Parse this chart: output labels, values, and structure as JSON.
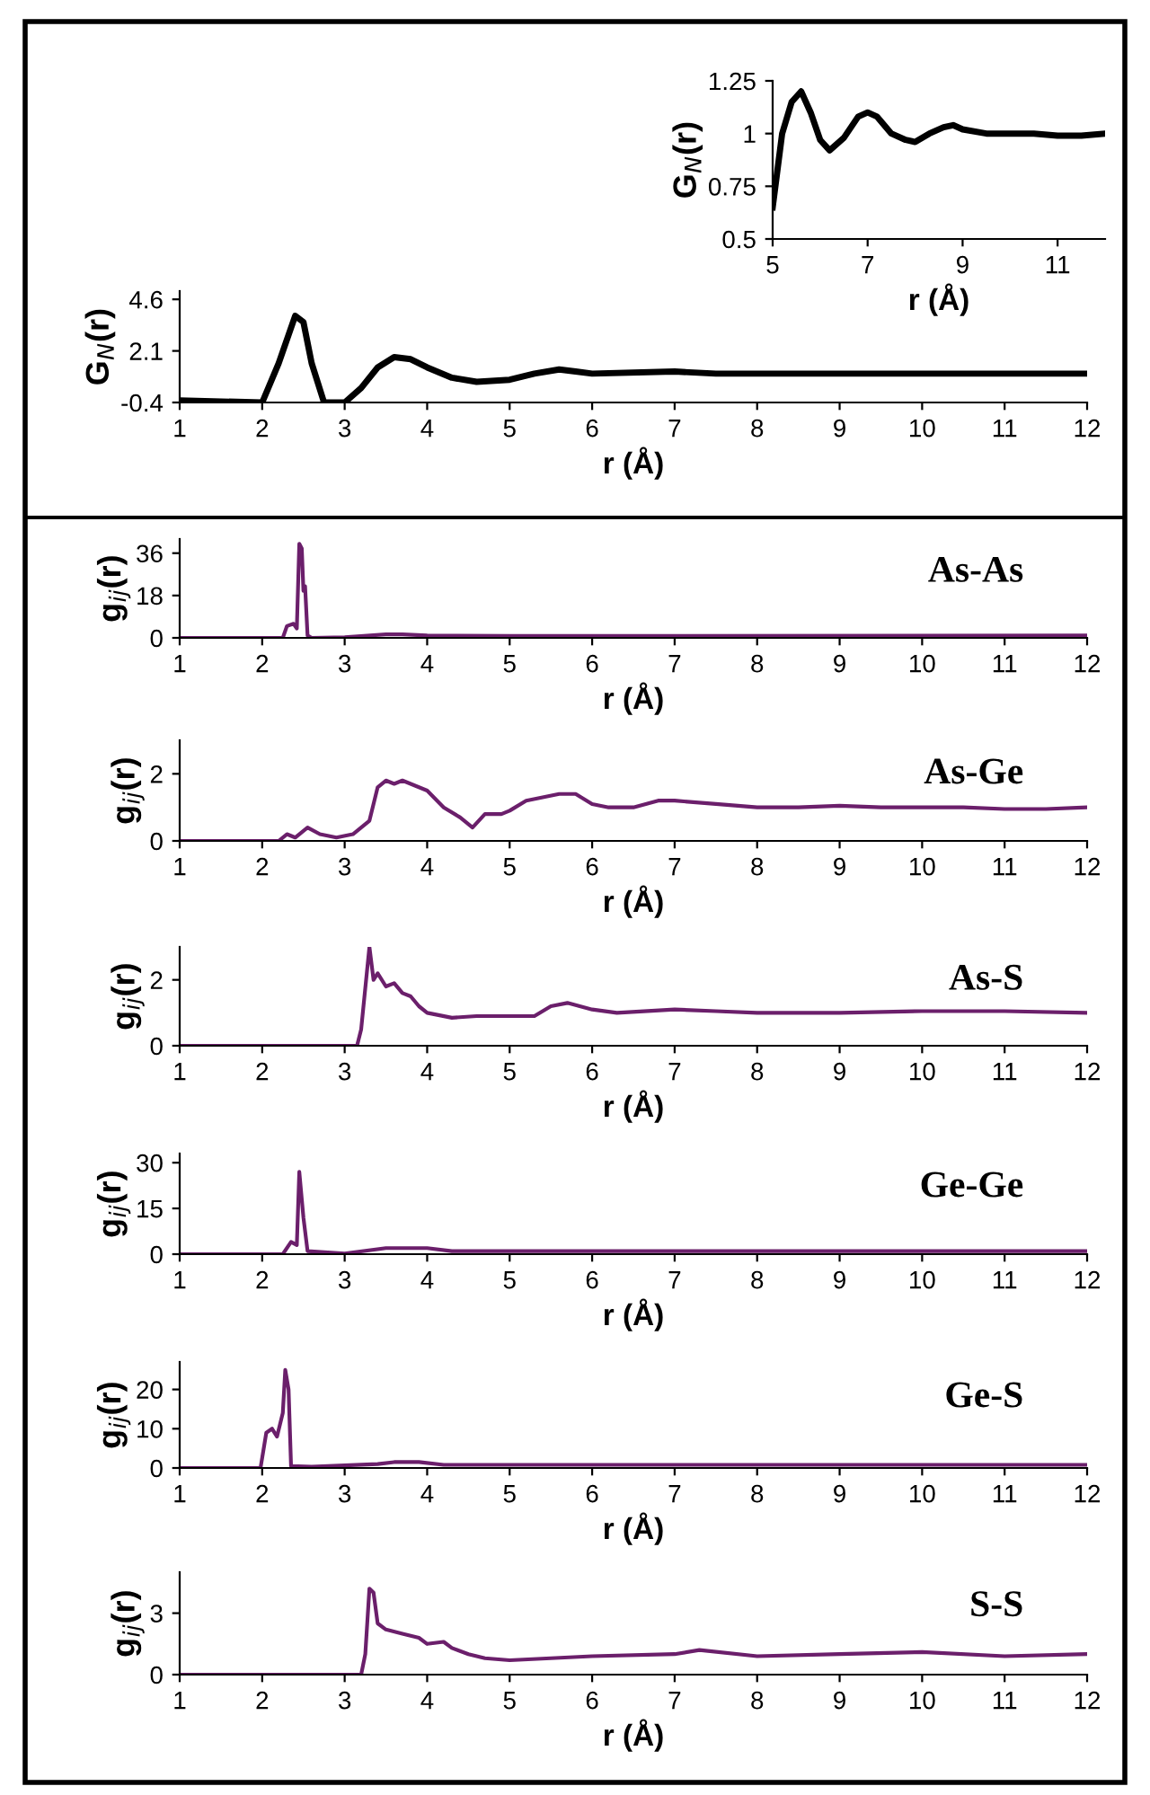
{
  "chart_data": [
    {
      "type": "line",
      "x": [
        5,
        5.2,
        5.4,
        5.6,
        5.8,
        6.0,
        6.2,
        6.5,
        6.8,
        7.0,
        7.2,
        7.5,
        7.8,
        8.0,
        8.3,
        8.6,
        8.8,
        9.0,
        9.5,
        10,
        10.5,
        11,
        11.5,
        12
      ],
      "values": [
        0.65,
        1.0,
        1.15,
        1.2,
        1.1,
        0.97,
        0.92,
        0.98,
        1.08,
        1.1,
        1.08,
        1.0,
        0.97,
        0.96,
        1.0,
        1.03,
        1.04,
        1.02,
        1.0,
        1.0,
        1.0,
        0.99,
        0.99,
        1.0
      ],
      "color": "#000000",
      "xlim": [
        5,
        12
      ],
      "ylim": [
        0.5,
        1.25
      ],
      "xticks": [
        5,
        7,
        9,
        11
      ],
      "yticks": [
        0.5,
        0.75,
        1,
        1.25
      ],
      "xlabel": "r (Å)",
      "ylabel": "G$_{N}$(r)"
    },
    {
      "type": "line",
      "x": [
        1,
        2.0,
        2.2,
        2.4,
        2.5,
        2.6,
        2.75,
        3.0,
        3.2,
        3.4,
        3.6,
        3.8,
        4.0,
        4.3,
        4.6,
        5.0,
        5.3,
        5.6,
        5.8,
        6.0,
        7.0,
        7.5,
        12
      ],
      "values": [
        -0.3,
        -0.4,
        1.5,
        3.8,
        3.5,
        1.5,
        -0.4,
        -0.4,
        0.3,
        1.3,
        1.8,
        1.7,
        1.3,
        0.8,
        0.6,
        0.7,
        1.0,
        1.2,
        1.1,
        1.0,
        1.1,
        1.0,
        1.0
      ],
      "color": "#000000",
      "xlim": [
        1,
        12
      ],
      "ylim": [
        -0.4,
        5.0
      ],
      "xticks": [
        1,
        2,
        3,
        4,
        5,
        6,
        7,
        8,
        9,
        10,
        11,
        12
      ],
      "yticks": [
        -0.4,
        2.1,
        4.6
      ],
      "xlabel": "r (Å)",
      "ylabel": "G$_{N}$(r)"
    },
    {
      "type": "line",
      "x": [
        1,
        2.25,
        2.3,
        2.38,
        2.42,
        2.45,
        2.48,
        2.5,
        2.52,
        2.55,
        2.6,
        3.0,
        3.5,
        3.7,
        4.0,
        5.0,
        12
      ],
      "values": [
        0,
        0,
        5,
        6,
        4,
        40,
        38,
        20,
        22,
        1,
        0,
        0.3,
        1.5,
        1.5,
        1,
        0.8,
        1
      ],
      "color": "#6b1f6b",
      "xlim": [
        1,
        12
      ],
      "ylim": [
        0,
        42
      ],
      "xticks": [
        1,
        2,
        3,
        4,
        5,
        6,
        7,
        8,
        9,
        10,
        11,
        12
      ],
      "yticks": [
        0,
        18,
        36
      ],
      "xlabel": "r (Å)",
      "ylabel": "g$_{ij}$(r)",
      "annotations": [
        "As-As"
      ]
    },
    {
      "type": "line",
      "x": [
        1,
        2.2,
        2.3,
        2.4,
        2.55,
        2.7,
        2.9,
        3.1,
        3.3,
        3.4,
        3.5,
        3.6,
        3.7,
        3.9,
        4.0,
        4.2,
        4.4,
        4.55,
        4.7,
        4.9,
        5.0,
        5.2,
        5.4,
        5.6,
        5.8,
        6.0,
        6.2,
        6.5,
        6.8,
        7.0,
        7.5,
        8,
        8.5,
        9,
        9.5,
        10,
        10.5,
        11,
        11.5,
        12
      ],
      "values": [
        0,
        0,
        0.2,
        0.1,
        0.4,
        0.2,
        0.1,
        0.2,
        0.6,
        1.6,
        1.8,
        1.7,
        1.8,
        1.6,
        1.5,
        1.0,
        0.7,
        0.4,
        0.8,
        0.8,
        0.9,
        1.2,
        1.3,
        1.4,
        1.4,
        1.1,
        1.0,
        1.0,
        1.2,
        1.2,
        1.1,
        1.0,
        1.0,
        1.05,
        1.0,
        1.0,
        1.0,
        0.95,
        0.95,
        1.0
      ],
      "color": "#6b1f6b",
      "xlim": [
        1,
        12
      ],
      "ylim": [
        0,
        3
      ],
      "xticks": [
        1,
        2,
        3,
        4,
        5,
        6,
        7,
        8,
        9,
        10,
        11,
        12
      ],
      "yticks": [
        0,
        2
      ],
      "xlabel": "r (Å)",
      "ylabel": "g$_{ij}$(r)",
      "annotations": [
        "As-Ge"
      ]
    },
    {
      "type": "line",
      "x": [
        1,
        3.15,
        3.2,
        3.3,
        3.35,
        3.4,
        3.5,
        3.6,
        3.7,
        3.8,
        3.9,
        4.0,
        4.3,
        4.6,
        5.0,
        5.3,
        5.5,
        5.7,
        6.0,
        6.3,
        7,
        7.5,
        8,
        9,
        10,
        11,
        12
      ],
      "values": [
        0,
        0,
        0.5,
        3.0,
        2.0,
        2.2,
        1.8,
        1.9,
        1.6,
        1.5,
        1.2,
        1.0,
        0.85,
        0.9,
        0.9,
        0.9,
        1.2,
        1.3,
        1.1,
        1.0,
        1.1,
        1.05,
        1.0,
        1.0,
        1.05,
        1.05,
        1.0
      ],
      "color": "#6b1f6b",
      "xlim": [
        1,
        12
      ],
      "ylim": [
        0,
        3
      ],
      "xticks": [
        1,
        2,
        3,
        4,
        5,
        6,
        7,
        8,
        9,
        10,
        11,
        12
      ],
      "yticks": [
        0,
        2
      ],
      "xlabel": "r (Å)",
      "ylabel": "g$_{ij}$(r)",
      "annotations": [
        "As-S"
      ]
    },
    {
      "type": "line",
      "x": [
        1,
        2.25,
        2.35,
        2.42,
        2.45,
        2.5,
        2.55,
        3.0,
        3.5,
        4.0,
        4.3,
        12
      ],
      "values": [
        0,
        0,
        4,
        3,
        27,
        12,
        1,
        0.2,
        2,
        2,
        1,
        1
      ],
      "color": "#6b1f6b",
      "xlim": [
        1,
        12
      ],
      "ylim": [
        0,
        33
      ],
      "xticks": [
        1,
        2,
        3,
        4,
        5,
        6,
        7,
        8,
        9,
        10,
        11,
        12
      ],
      "yticks": [
        0,
        15,
        30
      ],
      "xlabel": "r (Å)",
      "ylabel": "g$_{ij}$(r)",
      "annotations": [
        "Ge-Ge"
      ]
    },
    {
      "type": "line",
      "x": [
        1,
        1.98,
        2.05,
        2.12,
        2.18,
        2.25,
        2.28,
        2.32,
        2.35,
        2.6,
        3.4,
        3.6,
        3.9,
        4.2,
        12
      ],
      "values": [
        0,
        0,
        9,
        10,
        8,
        14,
        25,
        20,
        0.5,
        0.3,
        1,
        1.5,
        1.5,
        0.8,
        0.8
      ],
      "color": "#6b1f6b",
      "xlim": [
        1,
        12
      ],
      "ylim": [
        0,
        27
      ],
      "xticks": [
        1,
        2,
        3,
        4,
        5,
        6,
        7,
        8,
        9,
        10,
        11,
        12
      ],
      "yticks": [
        0,
        10,
        20
      ],
      "xlabel": "r (Å)",
      "ylabel": "g$_{ij}$(r)",
      "annotations": [
        "Ge-S"
      ]
    },
    {
      "type": "line",
      "x": [
        1,
        3.2,
        3.25,
        3.3,
        3.35,
        3.4,
        3.5,
        3.7,
        3.9,
        4.0,
        4.2,
        4.3,
        4.5,
        4.7,
        5,
        5.5,
        6,
        7,
        7.3,
        8,
        9,
        10,
        11,
        12
      ],
      "values": [
        0,
        0,
        1,
        4.2,
        4.0,
        2.5,
        2.2,
        2.0,
        1.8,
        1.5,
        1.6,
        1.3,
        1.0,
        0.8,
        0.7,
        0.8,
        0.9,
        1.0,
        1.2,
        0.9,
        1.0,
        1.1,
        0.9,
        1.0
      ],
      "color": "#6b1f6b",
      "xlim": [
        1,
        12
      ],
      "ylim": [
        0,
        5
      ],
      "xticks": [
        1,
        2,
        3,
        4,
        5,
        6,
        7,
        8,
        9,
        10,
        11,
        12
      ],
      "yticks": [
        0,
        3
      ],
      "xlabel": "r (Å)",
      "ylabel": "g$_{ij}$(r)",
      "annotations": [
        "S-S"
      ]
    }
  ]
}
